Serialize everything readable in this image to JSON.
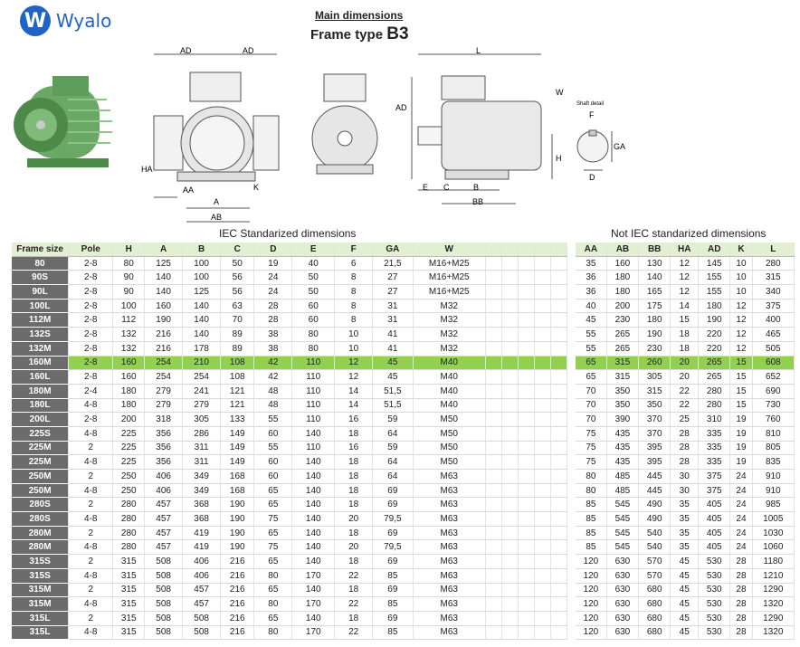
{
  "brand": {
    "name": "Wyalo",
    "badge": "W"
  },
  "header": {
    "main": "Main dimensions",
    "frame_prefix": "Frame type",
    "frame_code": "B3"
  },
  "drawing_labels": {
    "ad": "AD",
    "ha": "HA",
    "aa": "AA",
    "a": "A",
    "ab": "AB",
    "k": "K",
    "l": "L",
    "w": "W",
    "h": "H",
    "e": "E",
    "c": "C",
    "b": "B",
    "bb": "BB",
    "shaft": "Shaft detail",
    "f": "F",
    "ga": "GA",
    "d": "D"
  },
  "iec_caption": "IEC Standarized dimensions",
  "non_iec_caption": "Not IEC standarized dimensions",
  "left_headers": [
    "Frame size",
    "Pole",
    "H",
    "A",
    "B",
    "C",
    "D",
    "E",
    "F",
    "GA",
    "W"
  ],
  "right_headers": [
    "AA",
    "AB",
    "BB",
    "HA",
    "AD",
    "K",
    "L"
  ],
  "highlight_row": 9,
  "rows": [
    {
      "l": [
        "80",
        "2-8",
        "80",
        "125",
        "100",
        "50",
        "19",
        "40",
        "6",
        "21,5",
        "M16+M25"
      ],
      "r": [
        "35",
        "160",
        "130",
        "12",
        "145",
        "10",
        "280"
      ]
    },
    {
      "l": [
        "90S",
        "2-8",
        "90",
        "140",
        "100",
        "56",
        "24",
        "50",
        "8",
        "27",
        "M16+M25"
      ],
      "r": [
        "36",
        "180",
        "140",
        "12",
        "155",
        "10",
        "315"
      ]
    },
    {
      "l": [
        "90L",
        "2-8",
        "90",
        "140",
        "125",
        "56",
        "24",
        "50",
        "8",
        "27",
        "M16+M25"
      ],
      "r": [
        "36",
        "180",
        "165",
        "12",
        "155",
        "10",
        "340"
      ]
    },
    {
      "l": [
        "100L",
        "2-8",
        "100",
        "160",
        "140",
        "63",
        "28",
        "60",
        "8",
        "31",
        "M32"
      ],
      "r": [
        "40",
        "200",
        "175",
        "14",
        "180",
        "12",
        "375"
      ]
    },
    {
      "l": [
        "112M",
        "2-8",
        "112",
        "190",
        "140",
        "70",
        "28",
        "60",
        "8",
        "31",
        "M32"
      ],
      "r": [
        "45",
        "230",
        "180",
        "15",
        "190",
        "12",
        "400"
      ]
    },
    {
      "l": [
        "132S",
        "2-8",
        "132",
        "216",
        "140",
        "89",
        "38",
        "80",
        "10",
        "41",
        "M32"
      ],
      "r": [
        "55",
        "265",
        "190",
        "18",
        "220",
        "12",
        "465"
      ]
    },
    {
      "l": [
        "132M",
        "2-8",
        "132",
        "216",
        "178",
        "89",
        "38",
        "80",
        "10",
        "41",
        "M32"
      ],
      "r": [
        "55",
        "265",
        "230",
        "18",
        "220",
        "12",
        "505"
      ]
    },
    {
      "l": [
        "160M",
        "2-8",
        "160",
        "254",
        "210",
        "108",
        "42",
        "110",
        "12",
        "45",
        "M40"
      ],
      "r": [
        "65",
        "315",
        "260",
        "20",
        "265",
        "15",
        "608"
      ]
    },
    {
      "l": [
        "160L",
        "2-8",
        "160",
        "254",
        "254",
        "108",
        "42",
        "110",
        "12",
        "45",
        "M40"
      ],
      "r": [
        "65",
        "315",
        "305",
        "20",
        "265",
        "15",
        "652"
      ]
    },
    {
      "l": [
        "180M",
        "2-4",
        "180",
        "279",
        "241",
        "121",
        "48",
        "110",
        "14",
        "51,5",
        "M40"
      ],
      "r": [
        "70",
        "350",
        "315",
        "22",
        "280",
        "15",
        "690"
      ]
    },
    {
      "l": [
        "180L",
        "4-8",
        "180",
        "279",
        "279",
        "121",
        "48",
        "110",
        "14",
        "51,5",
        "M40"
      ],
      "r": [
        "70",
        "350",
        "350",
        "22",
        "280",
        "15",
        "730"
      ]
    },
    {
      "l": [
        "200L",
        "2-8",
        "200",
        "318",
        "305",
        "133",
        "55",
        "110",
        "16",
        "59",
        "M50"
      ],
      "r": [
        "70",
        "390",
        "370",
        "25",
        "310",
        "19",
        "760"
      ]
    },
    {
      "l": [
        "225S",
        "4-8",
        "225",
        "356",
        "286",
        "149",
        "60",
        "140",
        "18",
        "64",
        "M50"
      ],
      "r": [
        "75",
        "435",
        "370",
        "28",
        "335",
        "19",
        "810"
      ]
    },
    {
      "l": [
        "225M",
        "2",
        "225",
        "356",
        "311",
        "149",
        "55",
        "110",
        "16",
        "59",
        "M50"
      ],
      "r": [
        "75",
        "435",
        "395",
        "28",
        "335",
        "19",
        "805"
      ]
    },
    {
      "l": [
        "225M",
        "4-8",
        "225",
        "356",
        "311",
        "149",
        "60",
        "140",
        "18",
        "64",
        "M50"
      ],
      "r": [
        "75",
        "435",
        "395",
        "28",
        "335",
        "19",
        "835"
      ]
    },
    {
      "l": [
        "250M",
        "2",
        "250",
        "406",
        "349",
        "168",
        "60",
        "140",
        "18",
        "64",
        "M63"
      ],
      "r": [
        "80",
        "485",
        "445",
        "30",
        "375",
        "24",
        "910"
      ]
    },
    {
      "l": [
        "250M",
        "4-8",
        "250",
        "406",
        "349",
        "168",
        "65",
        "140",
        "18",
        "69",
        "M63"
      ],
      "r": [
        "80",
        "485",
        "445",
        "30",
        "375",
        "24",
        "910"
      ]
    },
    {
      "l": [
        "280S",
        "2",
        "280",
        "457",
        "368",
        "190",
        "65",
        "140",
        "18",
        "69",
        "M63"
      ],
      "r": [
        "85",
        "545",
        "490",
        "35",
        "405",
        "24",
        "985"
      ]
    },
    {
      "l": [
        "280S",
        "4-8",
        "280",
        "457",
        "368",
        "190",
        "75",
        "140",
        "20",
        "79,5",
        "M63"
      ],
      "r": [
        "85",
        "545",
        "490",
        "35",
        "405",
        "24",
        "1005"
      ]
    },
    {
      "l": [
        "280M",
        "2",
        "280",
        "457",
        "419",
        "190",
        "65",
        "140",
        "18",
        "69",
        "M63"
      ],
      "r": [
        "85",
        "545",
        "540",
        "35",
        "405",
        "24",
        "1030"
      ]
    },
    {
      "l": [
        "280M",
        "4-8",
        "280",
        "457",
        "419",
        "190",
        "75",
        "140",
        "20",
        "79,5",
        "M63"
      ],
      "r": [
        "85",
        "545",
        "540",
        "35",
        "405",
        "24",
        "1060"
      ]
    },
    {
      "l": [
        "315S",
        "2",
        "315",
        "508",
        "406",
        "216",
        "65",
        "140",
        "18",
        "69",
        "M63"
      ],
      "r": [
        "120",
        "630",
        "570",
        "45",
        "530",
        "28",
        "1180"
      ]
    },
    {
      "l": [
        "315S",
        "4-8",
        "315",
        "508",
        "406",
        "216",
        "80",
        "170",
        "22",
        "85",
        "M63"
      ],
      "r": [
        "120",
        "630",
        "570",
        "45",
        "530",
        "28",
        "1210"
      ]
    },
    {
      "l": [
        "315M",
        "2",
        "315",
        "508",
        "457",
        "216",
        "65",
        "140",
        "18",
        "69",
        "M63"
      ],
      "r": [
        "120",
        "630",
        "680",
        "45",
        "530",
        "28",
        "1290"
      ]
    },
    {
      "l": [
        "315M",
        "4-8",
        "315",
        "508",
        "457",
        "216",
        "80",
        "170",
        "22",
        "85",
        "M63"
      ],
      "r": [
        "120",
        "630",
        "680",
        "45",
        "530",
        "28",
        "1320"
      ]
    },
    {
      "l": [
        "315L",
        "2",
        "315",
        "508",
        "508",
        "216",
        "65",
        "140",
        "18",
        "69",
        "M63"
      ],
      "r": [
        "120",
        "630",
        "680",
        "45",
        "530",
        "28",
        "1290"
      ]
    },
    {
      "l": [
        "315L",
        "4-8",
        "315",
        "508",
        "508",
        "216",
        "80",
        "170",
        "22",
        "85",
        "M63"
      ],
      "r": [
        "120",
        "630",
        "680",
        "45",
        "530",
        "28",
        "1320"
      ]
    }
  ],
  "colors": {
    "brand": "#1f64c4",
    "header_row": "#e3efd3",
    "frame_cell": "#6b6b6b",
    "highlight": "#92d050",
    "motor": "#5f9e5a"
  }
}
